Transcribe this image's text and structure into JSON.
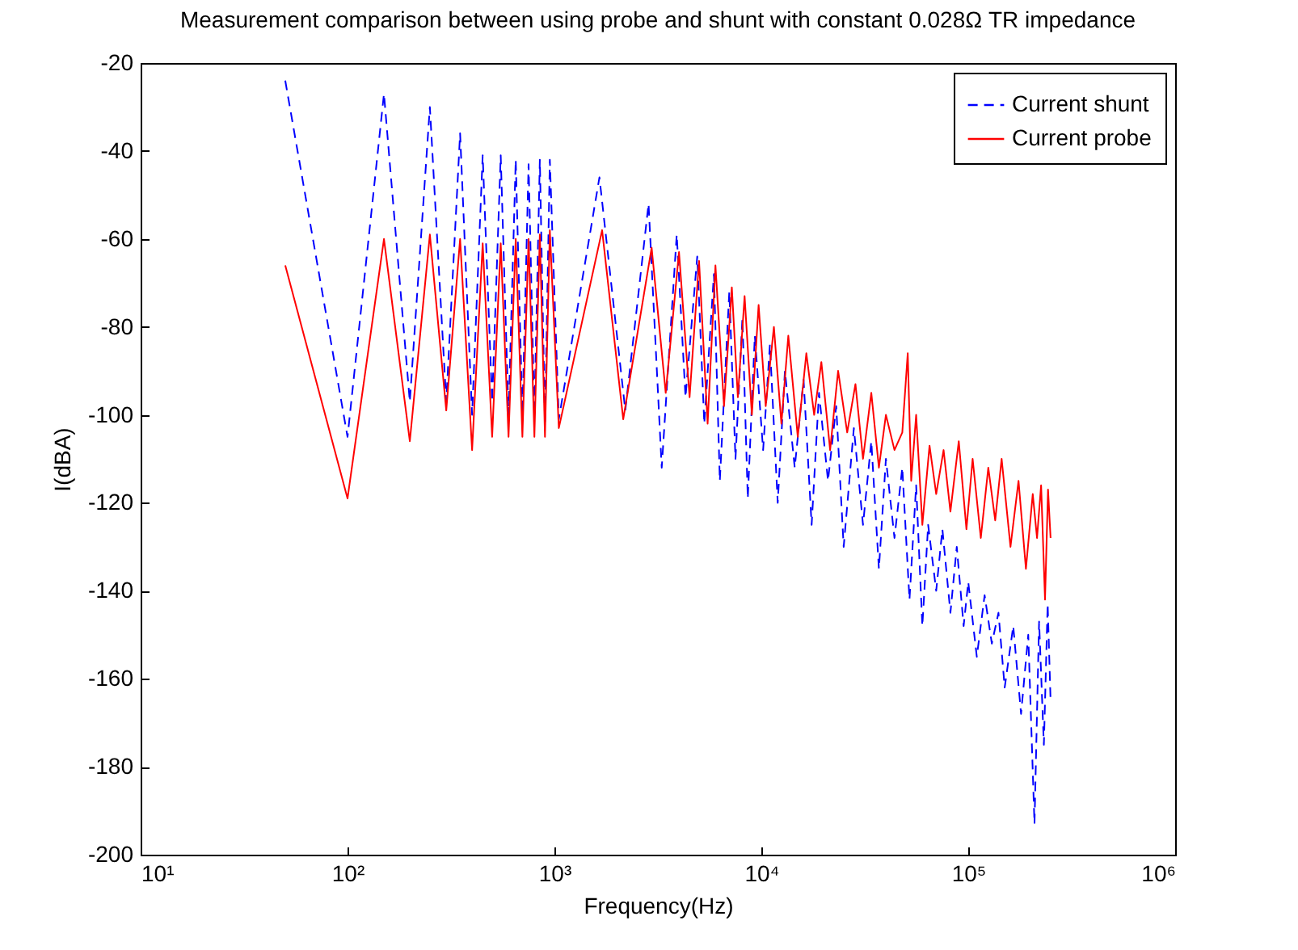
{
  "chart_data": {
    "type": "line",
    "title": "Measurement comparison between using probe and shunt with constant 0.028Ω TR impedance",
    "xlabel": "Frequency(Hz)",
    "ylabel": "I(dBA)",
    "log": "x",
    "xlim": [
      10,
      1000000
    ],
    "ylim": [
      -200,
      -20
    ],
    "xticks": [
      {
        "value": 10,
        "label": "10¹"
      },
      {
        "value": 100,
        "label": "10²"
      },
      {
        "value": 1000,
        "label": "10³"
      },
      {
        "value": 10000,
        "label": "10⁴"
      },
      {
        "value": 100000,
        "label": "10⁵"
      },
      {
        "value": 1000000,
        "label": "10⁶"
      }
    ],
    "yticks": [
      -200,
      -180,
      -160,
      -140,
      -120,
      -100,
      -80,
      -60,
      -40,
      -20
    ],
    "grid": false,
    "legend": "top right",
    "series": [
      {
        "name": "Current shunt",
        "color": "#0000ff",
        "line_style": "dashed",
        "x": [
          50,
          100,
          150,
          200,
          250,
          300,
          350,
          400,
          450,
          500,
          550,
          600,
          650,
          700,
          750,
          800,
          850,
          900,
          950,
          1050,
          1650,
          2200,
          2850,
          3300,
          3900,
          4300,
          4900,
          5300,
          5900,
          6300,
          7000,
          7500,
          8100,
          8600,
          9300,
          10200,
          11000,
          12000,
          13000,
          14500,
          16000,
          17500,
          19000,
          21000,
          23000,
          25000,
          28000,
          31000,
          34000,
          37000,
          40000,
          44000,
          48000,
          52000,
          56000,
          60000,
          64000,
          70000,
          75000,
          82000,
          88000,
          95000,
          100000,
          110000,
          120000,
          130000,
          140000,
          150000,
          165000,
          180000,
          195000,
          209000,
          220000,
          232000,
          242000,
          250000
        ],
        "values": [
          -24,
          -105,
          -27,
          -97,
          -30,
          -97,
          -36,
          -100,
          -41,
          -97,
          -41,
          -100,
          -42,
          -100,
          -43,
          -100,
          -42,
          -102,
          -42,
          -101,
          -46,
          -99,
          -52,
          -112,
          -59,
          -96,
          -64,
          -102,
          -68,
          -115,
          -72,
          -110,
          -78,
          -119,
          -82,
          -108,
          -84,
          -120,
          -90,
          -112,
          -92,
          -125,
          -95,
          -115,
          -98,
          -130,
          -103,
          -125,
          -106,
          -135,
          -110,
          -128,
          -112,
          -142,
          -116,
          -148,
          -125,
          -140,
          -126,
          -145,
          -130,
          -148,
          -138,
          -155,
          -141,
          -152,
          -145,
          -162,
          -148,
          -168,
          -150,
          -193,
          -147,
          -175,
          -143,
          -165
        ]
      },
      {
        "name": "Current probe",
        "color": "#ff0000",
        "line_style": "solid",
        "x": [
          50,
          100,
          150,
          200,
          250,
          300,
          350,
          400,
          450,
          500,
          550,
          600,
          650,
          700,
          750,
          800,
          850,
          900,
          950,
          1050,
          1700,
          2150,
          2950,
          3450,
          4000,
          4500,
          5000,
          5500,
          6000,
          6600,
          7200,
          7700,
          8300,
          9000,
          9700,
          10500,
          11500,
          12500,
          13500,
          15000,
          16500,
          18000,
          19500,
          21500,
          23500,
          26000,
          28500,
          31000,
          34000,
          37000,
          40000,
          44000,
          48000,
          51000,
          53000,
          56000,
          60000,
          65000,
          70000,
          76000,
          82000,
          90000,
          98000,
          105000,
          115000,
          125000,
          135000,
          145000,
          160000,
          175000,
          190000,
          205000,
          215000,
          225000,
          235000,
          243000,
          250000
        ],
        "values": [
          -66,
          -119,
          -60,
          -106,
          -59,
          -99,
          -60,
          -108,
          -61,
          -105,
          -61,
          -105,
          -60,
          -105,
          -60,
          -105,
          -59,
          -105,
          -58,
          -103,
          -58,
          -101,
          -62,
          -95,
          -63,
          -96,
          -65,
          -102,
          -66,
          -98,
          -71,
          -96,
          -73,
          -100,
          -75,
          -98,
          -80,
          -102,
          -82,
          -105,
          -86,
          -100,
          -88,
          -108,
          -90,
          -104,
          -93,
          -110,
          -95,
          -112,
          -100,
          -108,
          -104,
          -86,
          -115,
          -100,
          -125,
          -107,
          -118,
          -108,
          -122,
          -106,
          -126,
          -110,
          -128,
          -112,
          -124,
          -110,
          -130,
          -115,
          -135,
          -118,
          -128,
          -116,
          -142,
          -117,
          -128
        ]
      }
    ]
  }
}
